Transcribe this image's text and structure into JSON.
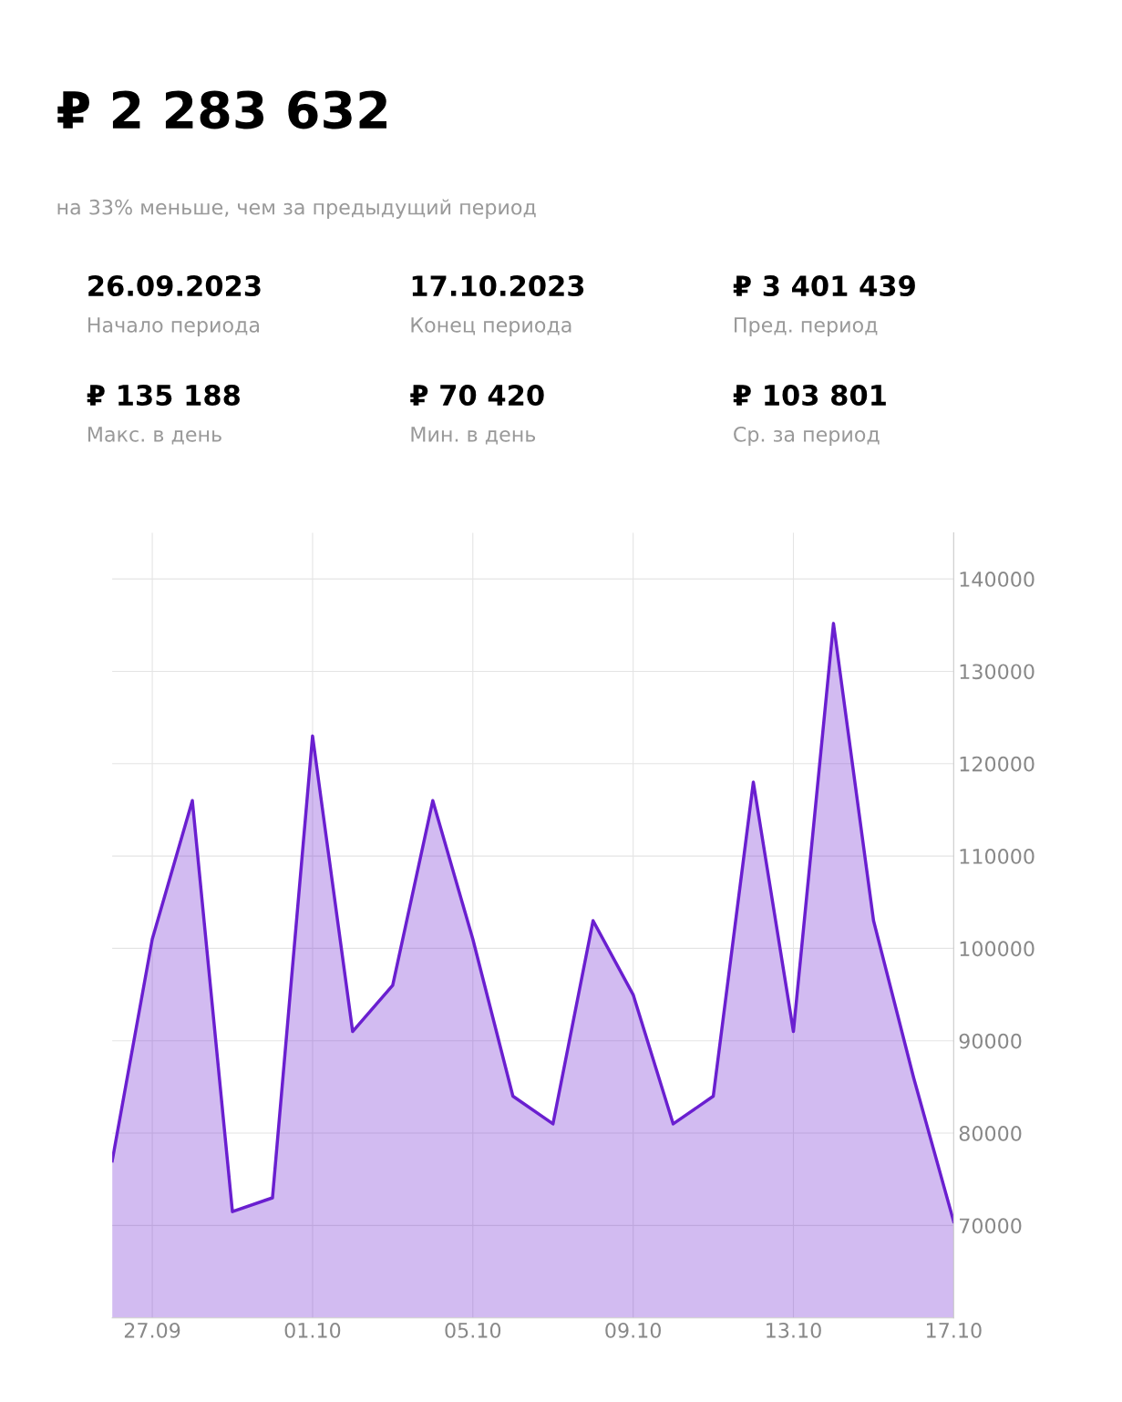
{
  "chart_data": [
    {
      "type": "other",
      "title": "₽ 2 283 632",
      "subtitle": "на 33% меньше, чем за предыдущий период",
      "annotations": [
        "26.09.2023",
        "Начало периода",
        "17.10.2023",
        "Конец периода",
        "₽ 3 401 439",
        "Пред. период",
        "₽ 135 188",
        "Макс. в день",
        "₽ 70 420",
        "Мин. в день",
        "₽ 103 801",
        "Ср. за период"
      ]
    },
    {
      "type": "area",
      "x": [
        "2023-09-26",
        "2023-09-27",
        "2023-09-28",
        "2023-09-29",
        "2023-09-30",
        "2023-10-01",
        "2023-10-02",
        "2023-10-03",
        "2023-10-04",
        "2023-10-05",
        "2023-10-06",
        "2023-10-07",
        "2023-10-08",
        "2023-10-09",
        "2023-10-10",
        "2023-10-11",
        "2023-10-12",
        "2023-10-13",
        "2023-10-14",
        "2023-10-15",
        "2023-10-16",
        "2023-10-17"
      ],
      "series": [
        {
          "color": "#6a1fd0",
          "values": [
            77000,
            101000,
            116000,
            71500,
            73000,
            123000,
            91000,
            96000,
            116000,
            101000,
            84000,
            81000,
            103000,
            95000,
            81000,
            84000,
            118000,
            91000,
            135188,
            103000,
            86000,
            70420
          ]
        }
      ],
      "xlim": [
        "2023-09-26",
        "2023-10-17"
      ],
      "xticks": [
        {
          "value": "2023-09-27",
          "label": "27.09"
        },
        {
          "value": "2023-10-01",
          "label": "01.10"
        },
        {
          "value": "2023-10-05",
          "label": "05.10"
        },
        {
          "value": "2023-10-09",
          "label": "09.10"
        },
        {
          "value": "2023-10-13",
          "label": "13.10"
        },
        {
          "value": "2023-10-17",
          "label": "17.10"
        }
      ],
      "ylim": [
        60000,
        145000
      ],
      "yticks": [
        70000,
        80000,
        90000,
        100000,
        110000,
        120000,
        130000,
        140000
      ],
      "grid": true
    }
  ]
}
